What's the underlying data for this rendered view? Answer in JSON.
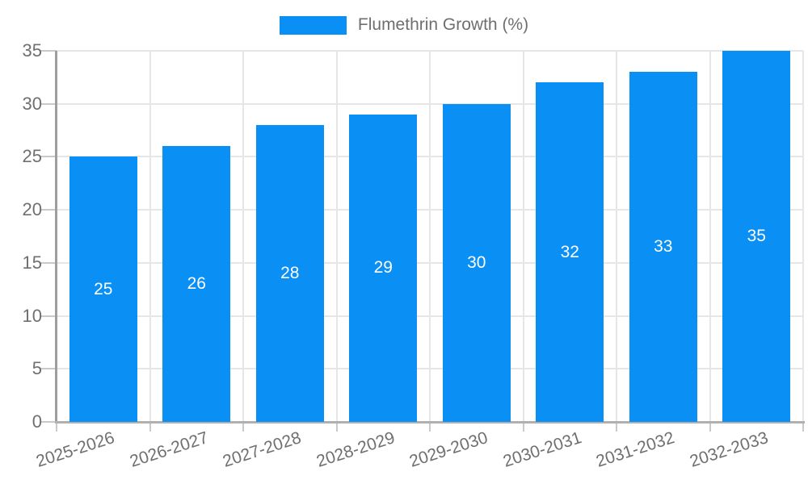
{
  "chart_data": {
    "type": "bar",
    "title": "",
    "legend": "Flumethrin Growth (%)",
    "legend_position": "top",
    "categories": [
      "2025-2026",
      "2026-2027",
      "2027-2028",
      "2028-2029",
      "2029-2030",
      "2030-2031",
      "2031-2032",
      "2032-2033"
    ],
    "values": [
      25,
      26,
      28,
      29,
      30,
      32,
      33,
      35
    ],
    "xlabel": "",
    "ylabel": "",
    "ylim": [
      0,
      35
    ],
    "ytick_step": 5,
    "yticks": [
      0,
      5,
      10,
      15,
      20,
      25,
      30,
      35
    ],
    "grid": true,
    "bar_labels_inside": true
  },
  "colors": {
    "bar": "#0a8ff5",
    "bar_label": "#ffffff",
    "axis_text": "#6f6f6f",
    "grid": "#e6e6e6",
    "tick": "#c9c9c9",
    "axis_line": "#9e9e9e",
    "baseline": "#b0b0b0",
    "background": "#ffffff"
  }
}
